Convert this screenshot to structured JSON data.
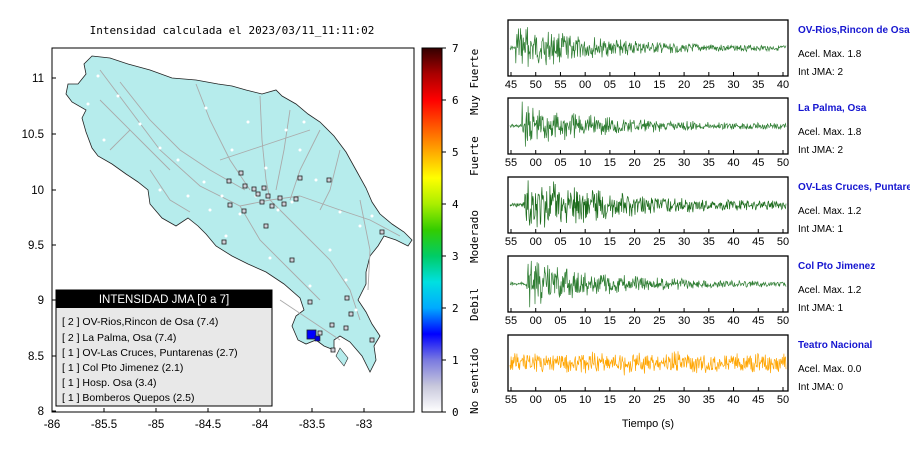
{
  "title": "Intensidad calculada el 2023/03/11_11:11:02",
  "map": {
    "xticks": [
      "-86",
      "-85.5",
      "-85",
      "-84.5",
      "-84",
      "-83.5",
      "-83"
    ],
    "yticks": [
      "11",
      "10.5",
      "10",
      "9.5",
      "9",
      "8.5",
      "8"
    ],
    "legend_title": "INTENSIDAD JMA [0 a 7]",
    "legend_items": [
      "[ 2 ]  OV-Rios,Rincon de Osa (7.4)",
      "[ 2 ]  La Palma, Osa (7.4)",
      "[ 1 ]  OV-Las Cruces, Puntarenas (2.7)",
      "[ 1 ]  Col Pto Jimenez (2.1)",
      "[ 1 ]  Hosp. Osa (3.4)",
      "[ 1 ]  Bomberos Quepos (2.5)"
    ]
  },
  "colorbar": {
    "ticks": [
      "0",
      "1",
      "2",
      "3",
      "4",
      "5",
      "6",
      "7"
    ],
    "labels": [
      "No sentido",
      "Debil",
      "Moderado",
      "Fuerte",
      "Muy Fuerte"
    ],
    "colors": [
      "#ffffff",
      "#c8c8dc",
      "#7a7ae0",
      "#0000ff",
      "#00aaff",
      "#00e0e0",
      "#00cc66",
      "#33cc00",
      "#aaee00",
      "#ffff00",
      "#ffaa00",
      "#ff5500",
      "#ff0000",
      "#aa0000",
      "#330000"
    ]
  },
  "traces": [
    {
      "name": "OV-Rios,Rincon de Osa",
      "acel": "Acel. Max. 1.8",
      "int": "Int JMA: 2",
      "color": "#2e7d32",
      "ticks": [
        "45",
        "50",
        "55",
        "00",
        "05",
        "10",
        "15",
        "20",
        "25",
        "30",
        "35",
        "40"
      ]
    },
    {
      "name": "La Palma, Osa",
      "acel": "Acel. Max. 1.8",
      "int": "Int JMA: 2",
      "color": "#2e7d32",
      "ticks": [
        "55",
        "00",
        "05",
        "10",
        "15",
        "20",
        "25",
        "30",
        "35",
        "40",
        "45",
        "50"
      ]
    },
    {
      "name": "OV-Las Cruces, Puntarenas",
      "acel": "Acel. Max. 1.2",
      "int": "Int JMA: 1",
      "color": "#1b6b1b",
      "ticks": [
        "55",
        "00",
        "05",
        "10",
        "15",
        "20",
        "25",
        "30",
        "35",
        "40",
        "45",
        "50"
      ]
    },
    {
      "name": "Col Pto Jimenez",
      "acel": "Acel. Max. 1.2",
      "int": "Int JMA: 1",
      "color": "#2e7d32",
      "ticks": [
        "55",
        "00",
        "05",
        "10",
        "15",
        "20",
        "25",
        "30",
        "35",
        "40",
        "45",
        "50"
      ]
    },
    {
      "name": "Teatro Nacional",
      "acel": "Acel. Max. 0.0",
      "int": "Int JMA: 0",
      "color": "#ffa500",
      "ticks": [
        "55",
        "00",
        "05",
        "10",
        "15",
        "20",
        "25",
        "30",
        "35",
        "40",
        "45",
        "50"
      ]
    }
  ],
  "xlabel": "Tiempo (s)"
}
